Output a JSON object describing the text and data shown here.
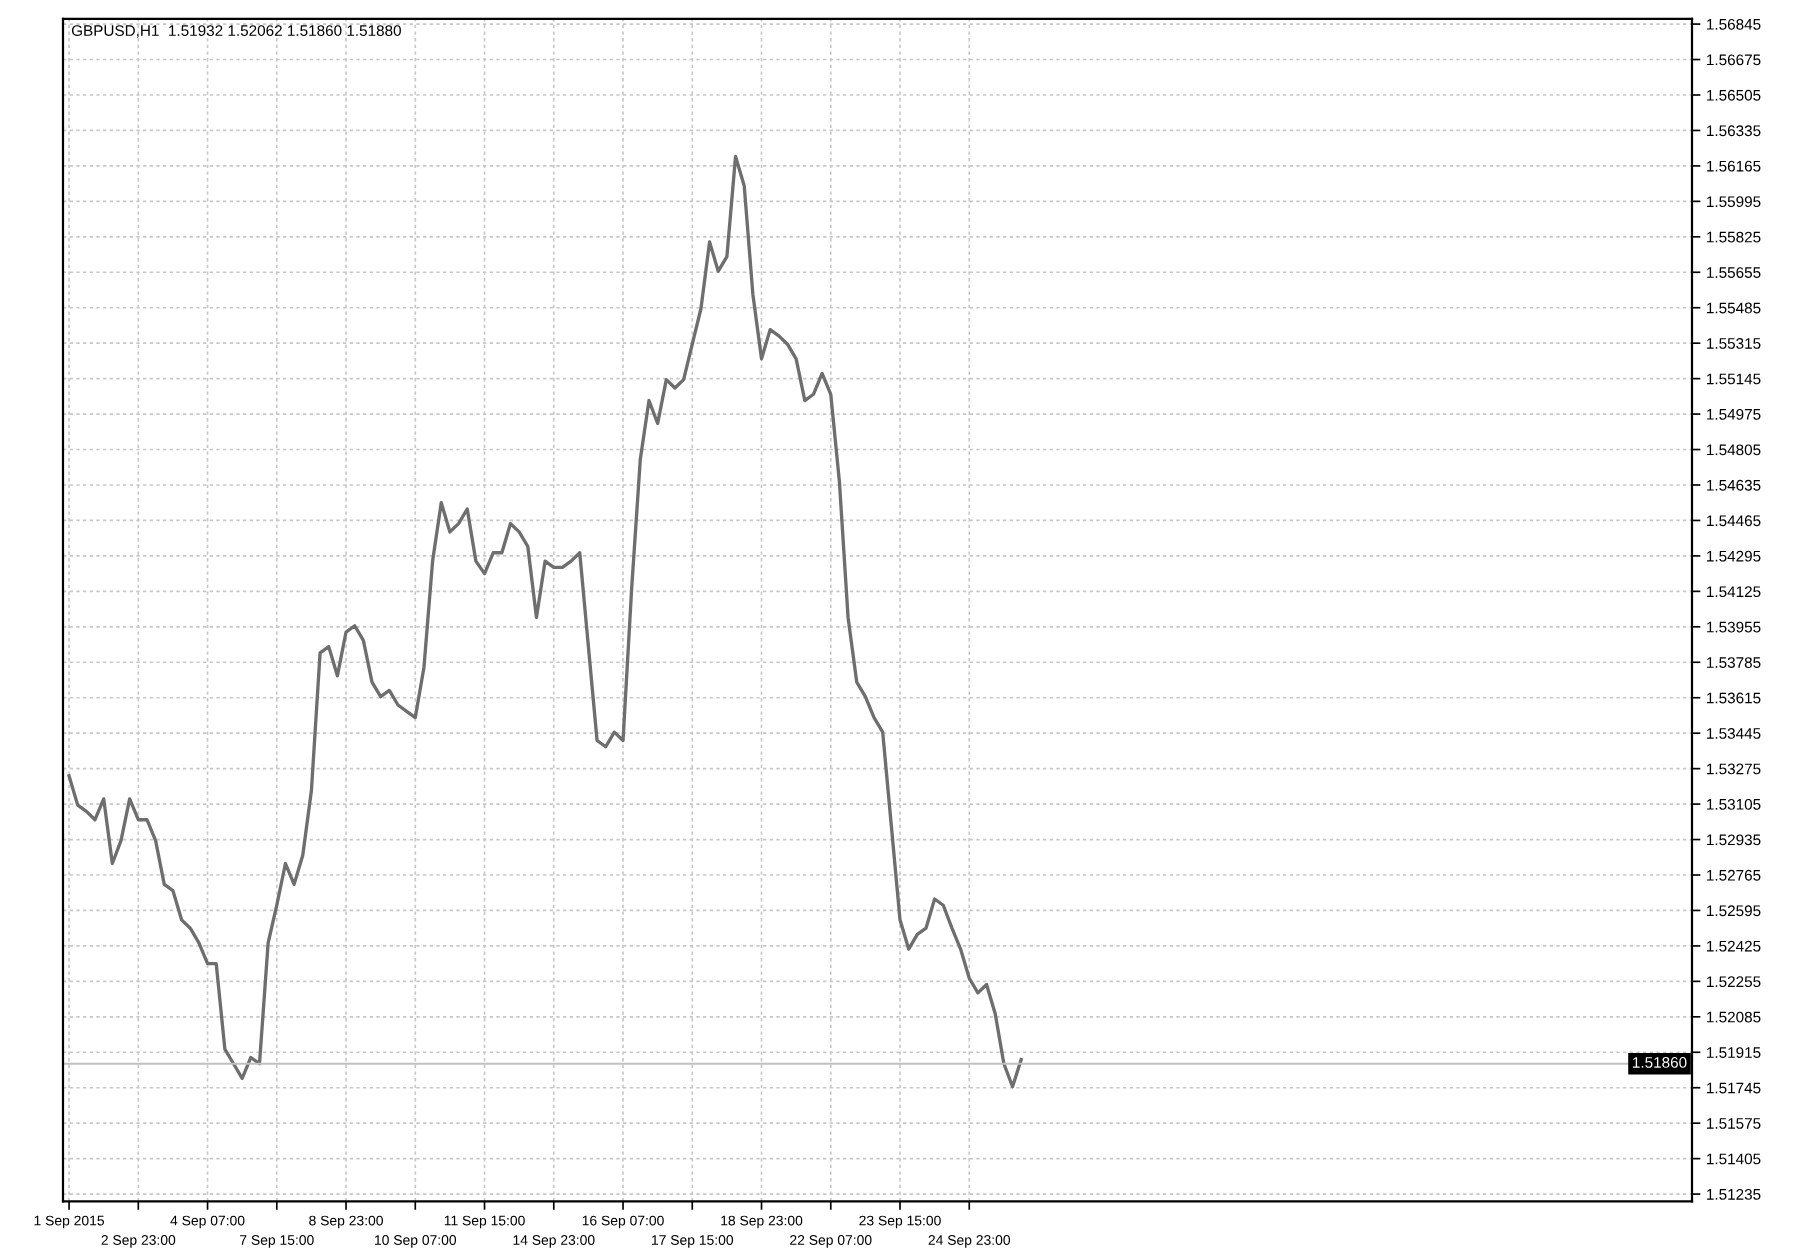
{
  "chart_data": {
    "type": "line",
    "title": "GBPUSD,H1  1.51932 1.52062 1.51860 1.51880",
    "categories": [
      "1 Sep 2015",
      null,
      null,
      null,
      null,
      null,
      null,
      null,
      "2 Sep 23:00",
      null,
      null,
      null,
      null,
      null,
      null,
      null,
      "4 Sep 07:00",
      null,
      null,
      null,
      null,
      null,
      null,
      null,
      "7 Sep 15:00",
      null,
      null,
      null,
      null,
      null,
      null,
      null,
      "8 Sep 23:00",
      null,
      null,
      null,
      null,
      null,
      null,
      null,
      "10 Sep 07:00",
      null,
      null,
      null,
      null,
      null,
      null,
      null,
      "11 Sep 15:00",
      null,
      null,
      null,
      null,
      null,
      null,
      null,
      "14 Sep 23:00",
      null,
      null,
      null,
      null,
      null,
      null,
      null,
      "16 Sep 07:00",
      null,
      null,
      null,
      null,
      null,
      null,
      null,
      "17 Sep 15:00",
      null,
      null,
      null,
      null,
      null,
      null,
      null,
      "18 Sep 23:00",
      null,
      null,
      null,
      null,
      null,
      null,
      null,
      "22 Sep 07:00",
      null,
      null,
      null,
      null,
      null,
      null,
      null,
      "23 Sep 15:00",
      null,
      null,
      null,
      null,
      null,
      null,
      null,
      "24 Sep 23:00",
      null,
      null,
      null,
      null,
      null,
      null,
      null,
      null,
      null,
      null,
      null,
      null,
      null,
      null,
      null,
      null,
      null,
      null,
      null,
      null,
      null,
      null,
      null,
      null,
      null,
      null,
      null,
      null,
      null,
      null,
      null,
      null,
      null,
      null,
      null,
      null,
      null,
      null,
      null,
      null,
      null,
      null,
      null,
      null,
      null,
      null,
      null,
      null,
      null,
      null,
      null,
      null,
      null,
      null,
      null,
      null,
      null,
      null,
      null,
      null,
      null,
      null,
      null,
      null,
      null,
      null,
      null,
      null,
      null,
      null,
      null,
      null,
      null,
      null,
      null,
      null,
      null,
      null,
      null,
      null,
      null,
      null,
      null
    ],
    "series": [
      {
        "color": "#6e6e6e",
        "values": [
          1.5324,
          1.531,
          1.5307,
          1.5303,
          1.5313,
          1.5282,
          1.5293,
          1.5313,
          1.5303,
          1.5303,
          1.5293,
          1.5272,
          1.5269,
          1.5255,
          1.5251,
          1.5244,
          1.5234,
          1.5234,
          1.5193,
          1.5186,
          1.5179,
          1.5189,
          1.5186,
          1.5244,
          1.5262,
          1.5282,
          1.5272,
          1.5286,
          1.5317,
          1.5383,
          1.5386,
          1.5372,
          1.5393,
          1.5396,
          1.5389,
          1.5369,
          1.5362,
          1.5365,
          1.5358,
          1.5355,
          1.5352,
          1.5376,
          1.5427,
          1.5455,
          1.5441,
          1.5445,
          1.5452,
          1.5427,
          1.5421,
          1.5431,
          1.5431,
          1.5445,
          1.5441,
          1.5434,
          1.54,
          1.5427,
          1.5424,
          1.5424,
          1.5427,
          1.5431,
          1.5386,
          1.5341,
          1.5338,
          1.5345,
          1.5341,
          1.5414,
          1.5476,
          1.5504,
          1.5493,
          1.5514,
          1.551,
          1.5514,
          1.5531,
          1.5548,
          1.558,
          1.5566,
          1.5573,
          1.5621,
          1.5607,
          1.5555,
          1.5524,
          1.5538,
          1.5535,
          1.5531,
          1.5524,
          1.5504,
          1.5507,
          1.5517,
          1.5507,
          1.5465,
          1.54,
          1.5369,
          1.5362,
          1.5352,
          1.5345,
          1.53,
          1.5255,
          1.5241,
          1.5248,
          1.5251,
          1.5265,
          1.5262,
          1.5251,
          1.5241,
          1.5227,
          1.522,
          1.5224,
          1.521,
          1.5186,
          1.5175,
          1.5188,
          null,
          null,
          null,
          null,
          null,
          null,
          null,
          null,
          null,
          null,
          null,
          null,
          null,
          null,
          null,
          null,
          null,
          null,
          null,
          null,
          null,
          null,
          null,
          null,
          null,
          null,
          null,
          null,
          null,
          null,
          null,
          null,
          null,
          null,
          null,
          null,
          null,
          null,
          null,
          null,
          null,
          null,
          null,
          null,
          null,
          null,
          null,
          null,
          null,
          null,
          null,
          null,
          null,
          null,
          null,
          null,
          null,
          null,
          null,
          null,
          null,
          null,
          null,
          null,
          null,
          null,
          null,
          null,
          null,
          null,
          null,
          null,
          null,
          null,
          null,
          null,
          null
        ]
      }
    ],
    "ylim": [
      1.512,
      1.5687
    ],
    "yticks": [
      1.51235,
      1.51405,
      1.51575,
      1.51745,
      1.51915,
      1.52085,
      1.52255,
      1.52425,
      1.52595,
      1.52765,
      1.52935,
      1.53105,
      1.53275,
      1.53445,
      1.53615,
      1.53785,
      1.53955,
      1.54125,
      1.54295,
      1.54465,
      1.54635,
      1.54805,
      1.54975,
      1.55145,
      1.55315,
      1.55485,
      1.55655,
      1.55825,
      1.55995,
      1.56165,
      1.56335,
      1.56505,
      1.56675,
      1.56845
    ],
    "ref_lines": [
      {
        "axis": "y",
        "value": 1.5186,
        "label": "1.51860",
        "color": "#c0c0c0"
      }
    ],
    "grid": true,
    "legend": false
  }
}
